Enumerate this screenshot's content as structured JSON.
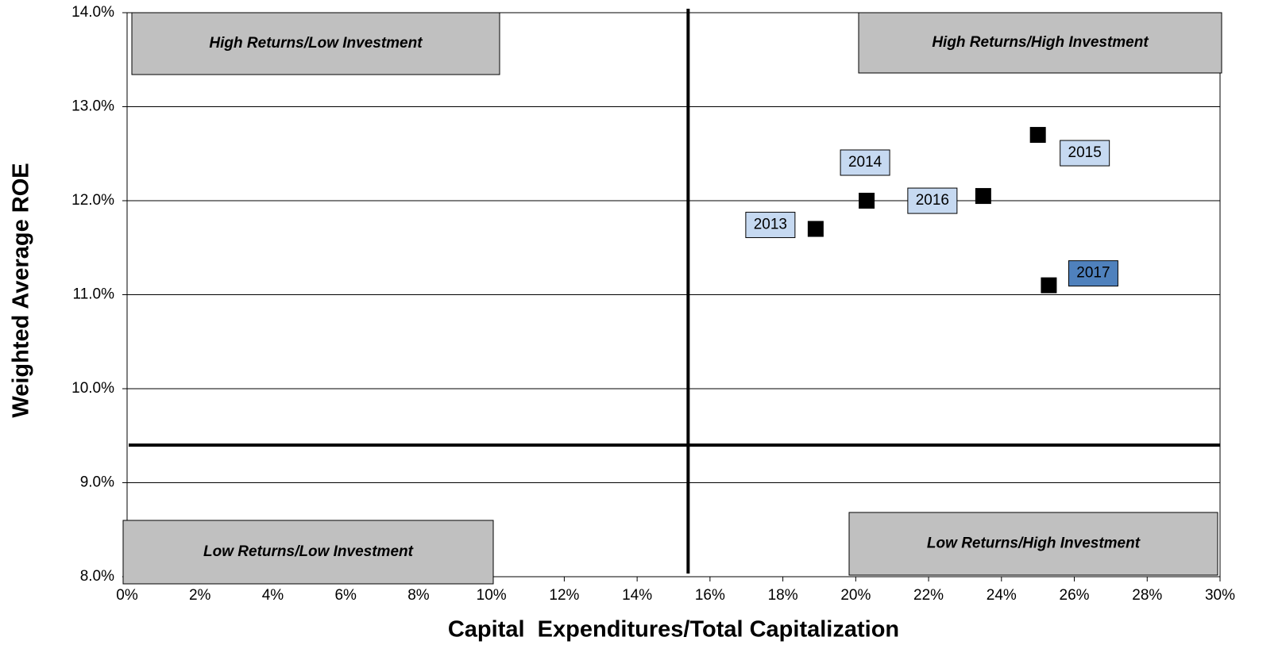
{
  "chart_data": {
    "type": "scatter",
    "xlabel": "Capital  Expenditures/Total Capitalization",
    "ylabel": "Weighted Average ROE",
    "x": [
      18.9,
      20.3,
      25.0,
      23.5,
      25.3
    ],
    "values": [
      11.7,
      12.0,
      12.7,
      12.05,
      11.1
    ],
    "labels": [
      "2013",
      "2014",
      "2015",
      "2016",
      "2017"
    ],
    "label_colors": [
      "#c6d9f1",
      "#c6d9f1",
      "#c6d9f1",
      "#c6d9f1",
      "#4f81bd"
    ],
    "color": "#000000",
    "xline": 15.4,
    "yline": 9.4,
    "quadrants": [
      "High Returns/Low Investment",
      "High Returns/High Investment",
      "Low Returns/Low Investment",
      "Low Returns/High Investment"
    ],
    "xlim": [
      0,
      30
    ],
    "ylim": [
      8,
      14
    ],
    "xticks": [
      {
        "value": 0,
        "label": "0%"
      },
      {
        "value": 2,
        "label": "2%"
      },
      {
        "value": 4,
        "label": "4%"
      },
      {
        "value": 6,
        "label": "6%"
      },
      {
        "value": 8,
        "label": "8%"
      },
      {
        "value": 10,
        "label": "10%"
      },
      {
        "value": 12,
        "label": "12%"
      },
      {
        "value": 14,
        "label": "14%"
      },
      {
        "value": 16,
        "label": "16%"
      },
      {
        "value": 18,
        "label": "18%"
      },
      {
        "value": 20,
        "label": "20%"
      },
      {
        "value": 22,
        "label": "22%"
      },
      {
        "value": 24,
        "label": "24%"
      },
      {
        "value": 26,
        "label": "26%"
      },
      {
        "value": 28,
        "label": "28%"
      },
      {
        "value": 30,
        "label": "30%"
      }
    ],
    "yticks": [
      {
        "value": 8,
        "label": "8.0%"
      },
      {
        "value": 9,
        "label": "9.0%"
      },
      {
        "value": 10,
        "label": "10.0%"
      },
      {
        "value": 11,
        "label": "11.0%"
      },
      {
        "value": 12,
        "label": "12.0%"
      },
      {
        "value": 13,
        "label": "13.0%"
      },
      {
        "value": 14,
        "label": "14.0%"
      }
    ],
    "grid": true
  }
}
